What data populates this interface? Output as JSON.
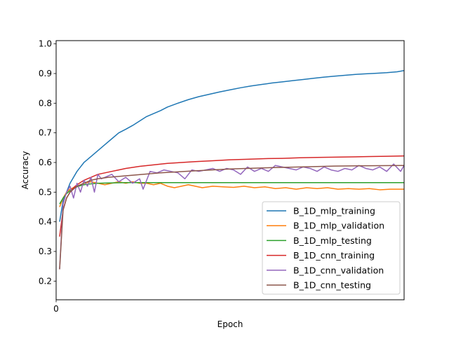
{
  "chart_data": {
    "type": "line",
    "title": "",
    "xlabel": "Epoch",
    "ylabel": "Accuracy",
    "xlim": [
      0,
      100
    ],
    "ylim": [
      0.137,
      1.011
    ],
    "x_ticks": [
      0
    ],
    "y_ticks": [
      0.2,
      0.3,
      0.4,
      0.5,
      0.6,
      0.7,
      0.8,
      0.9,
      1.0
    ],
    "y_tick_labels": [
      "0.2",
      "0.3",
      "0.4",
      "0.5",
      "0.6",
      "0.7",
      "0.8",
      "0.9",
      "1.0"
    ],
    "grid": false,
    "legend_position": "lower-right",
    "series": [
      {
        "name": "B_1D_mlp_training",
        "color": "#1f77b4",
        "x": [
          1,
          2,
          3,
          4,
          5,
          6,
          7,
          8,
          9,
          10,
          12,
          14,
          16,
          18,
          20,
          22,
          24,
          26,
          28,
          30,
          32,
          35,
          38,
          41,
          44,
          47,
          50,
          53,
          56,
          59,
          62,
          65,
          68,
          71,
          74,
          77,
          80,
          83,
          86,
          89,
          92,
          95,
          98,
          100
        ],
        "values": [
          0.4,
          0.47,
          0.5,
          0.53,
          0.55,
          0.57,
          0.585,
          0.6,
          0.61,
          0.62,
          0.64,
          0.66,
          0.68,
          0.7,
          0.712,
          0.725,
          0.74,
          0.755,
          0.765,
          0.775,
          0.787,
          0.8,
          0.812,
          0.822,
          0.83,
          0.838,
          0.845,
          0.852,
          0.858,
          0.863,
          0.868,
          0.872,
          0.876,
          0.88,
          0.884,
          0.888,
          0.891,
          0.894,
          0.897,
          0.899,
          0.901,
          0.903,
          0.906,
          0.91
        ]
      },
      {
        "name": "B_1D_mlp_validation",
        "color": "#ff7f0e",
        "x": [
          1,
          2,
          3,
          4,
          5,
          6,
          7,
          8,
          10,
          12,
          14,
          16,
          18,
          20,
          22,
          24,
          26,
          28,
          30,
          32,
          34,
          36,
          38,
          40,
          42,
          45,
          48,
          51,
          54,
          57,
          60,
          63,
          66,
          69,
          72,
          75,
          78,
          81,
          84,
          87,
          90,
          93,
          96,
          100
        ],
        "values": [
          0.45,
          0.48,
          0.5,
          0.51,
          0.515,
          0.52,
          0.525,
          0.53,
          0.535,
          0.53,
          0.525,
          0.53,
          0.535,
          0.53,
          0.535,
          0.53,
          0.53,
          0.525,
          0.53,
          0.52,
          0.515,
          0.52,
          0.525,
          0.52,
          0.515,
          0.52,
          0.518,
          0.516,
          0.52,
          0.515,
          0.518,
          0.512,
          0.515,
          0.51,
          0.515,
          0.512,
          0.515,
          0.51,
          0.512,
          0.51,
          0.512,
          0.508,
          0.51,
          0.51
        ]
      },
      {
        "name": "B_1D_mlp_testing",
        "color": "#2ca02c",
        "x": [
          1,
          2,
          3,
          4,
          5,
          6,
          7,
          8,
          10,
          12,
          15,
          20,
          30,
          40,
          50,
          60,
          70,
          80,
          90,
          100
        ],
        "values": [
          0.46,
          0.48,
          0.495,
          0.505,
          0.512,
          0.518,
          0.522,
          0.525,
          0.528,
          0.53,
          0.531,
          0.532,
          0.532,
          0.532,
          0.532,
          0.532,
          0.532,
          0.532,
          0.532,
          0.532
        ]
      },
      {
        "name": "B_1D_cnn_training",
        "color": "#d62728",
        "x": [
          1,
          2,
          3,
          4,
          5,
          6,
          8,
          10,
          12,
          14,
          16,
          18,
          20,
          24,
          28,
          32,
          36,
          40,
          45,
          50,
          55,
          60,
          65,
          70,
          75,
          80,
          85,
          90,
          95,
          100
        ],
        "values": [
          0.35,
          0.44,
          0.48,
          0.5,
          0.515,
          0.525,
          0.54,
          0.55,
          0.56,
          0.565,
          0.57,
          0.575,
          0.58,
          0.587,
          0.592,
          0.597,
          0.6,
          0.603,
          0.606,
          0.609,
          0.611,
          0.613,
          0.614,
          0.616,
          0.617,
          0.618,
          0.619,
          0.62,
          0.621,
          0.622
        ]
      },
      {
        "name": "B_1D_cnn_validation",
        "color": "#9467bd",
        "x": [
          1,
          2,
          3,
          4,
          5,
          6,
          7,
          8,
          9,
          10,
          11,
          12,
          13,
          14,
          16,
          18,
          20,
          22,
          24,
          25,
          27,
          29,
          31,
          33,
          35,
          37,
          39,
          41,
          43,
          45,
          47,
          49,
          51,
          53,
          55,
          57,
          59,
          61,
          63,
          65,
          67,
          69,
          71,
          73,
          75,
          77,
          79,
          81,
          83,
          85,
          87,
          89,
          91,
          93,
          95,
          97,
          99,
          100
        ],
        "values": [
          0.24,
          0.46,
          0.5,
          0.52,
          0.48,
          0.53,
          0.5,
          0.54,
          0.52,
          0.55,
          0.5,
          0.56,
          0.545,
          0.55,
          0.56,
          0.535,
          0.55,
          0.53,
          0.545,
          0.51,
          0.57,
          0.565,
          0.575,
          0.57,
          0.565,
          0.545,
          0.575,
          0.57,
          0.575,
          0.58,
          0.57,
          0.58,
          0.575,
          0.56,
          0.585,
          0.57,
          0.58,
          0.57,
          0.59,
          0.585,
          0.58,
          0.575,
          0.585,
          0.58,
          0.57,
          0.585,
          0.575,
          0.57,
          0.58,
          0.575,
          0.59,
          0.58,
          0.575,
          0.585,
          0.57,
          0.595,
          0.57,
          0.59
        ]
      },
      {
        "name": "B_1D_cnn_testing",
        "color": "#8c564b",
        "x": [
          1,
          2,
          3,
          4,
          5,
          6,
          8,
          10,
          12,
          15,
          20,
          25,
          30,
          40,
          50,
          60,
          70,
          80,
          90,
          100
        ],
        "values": [
          0.24,
          0.44,
          0.48,
          0.5,
          0.51,
          0.52,
          0.53,
          0.54,
          0.545,
          0.55,
          0.555,
          0.56,
          0.565,
          0.572,
          0.578,
          0.582,
          0.585,
          0.588,
          0.589,
          0.59
        ]
      }
    ]
  }
}
